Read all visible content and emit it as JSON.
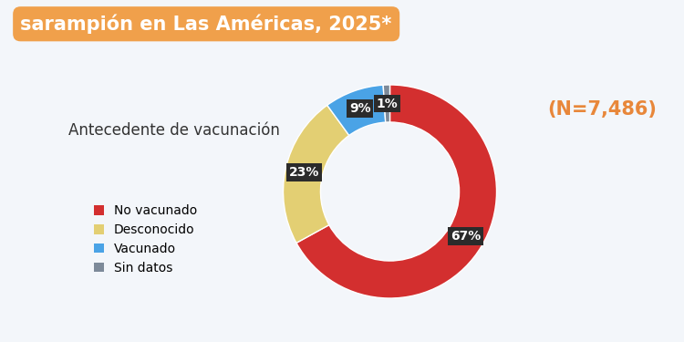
{
  "chart_data": {
    "type": "donut",
    "title": "sarampión en Las Américas, 2025*",
    "subtitle": "Antecedente de vacunación",
    "annotation": "(N=7,486)",
    "categories": [
      "No vacunado",
      "Desconocido",
      "Vacunado",
      "Sin datos"
    ],
    "values": [
      67,
      23,
      9,
      1
    ],
    "value_labels": [
      "67%",
      "23%",
      "9%",
      "1%"
    ],
    "colors": [
      "#d32f2f",
      "#e3cf73",
      "#4aa3e6",
      "#7d8a99"
    ],
    "data_labels": true,
    "legend": "center left"
  }
}
